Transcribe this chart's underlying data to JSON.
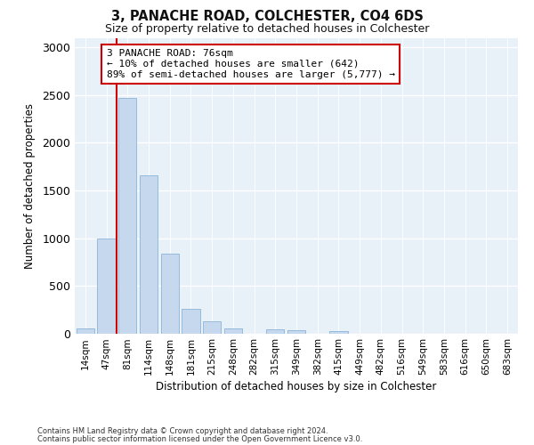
{
  "title1": "3, PANACHE ROAD, COLCHESTER, CO4 6DS",
  "title2": "Size of property relative to detached houses in Colchester",
  "xlabel": "Distribution of detached houses by size in Colchester",
  "ylabel": "Number of detached properties",
  "categories": [
    "14sqm",
    "47sqm",
    "81sqm",
    "114sqm",
    "148sqm",
    "181sqm",
    "215sqm",
    "248sqm",
    "282sqm",
    "315sqm",
    "349sqm",
    "382sqm",
    "415sqm",
    "449sqm",
    "482sqm",
    "516sqm",
    "549sqm",
    "583sqm",
    "616sqm",
    "650sqm",
    "683sqm"
  ],
  "values": [
    55,
    1000,
    2470,
    1660,
    840,
    260,
    130,
    55,
    0,
    50,
    40,
    0,
    30,
    0,
    0,
    0,
    0,
    0,
    0,
    0,
    0
  ],
  "bar_color": "#c5d8ee",
  "bar_edge_color": "#8ab4d8",
  "vline_color": "#cc0000",
  "vline_pos": 1.5,
  "annotation_text": "3 PANACHE ROAD: 76sqm\n← 10% of detached houses are smaller (642)\n89% of semi-detached houses are larger (5,777) →",
  "annotation_box_facecolor": "#ffffff",
  "annotation_box_edgecolor": "#cc0000",
  "ylim": [
    0,
    3100
  ],
  "yticks": [
    0,
    500,
    1000,
    1500,
    2000,
    2500,
    3000
  ],
  "footnote1": "Contains HM Land Registry data © Crown copyright and database right 2024.",
  "footnote2": "Contains public sector information licensed under the Open Government Licence v3.0.",
  "fig_bg_color": "#ffffff",
  "plot_bg_color": "#e8f0f8"
}
